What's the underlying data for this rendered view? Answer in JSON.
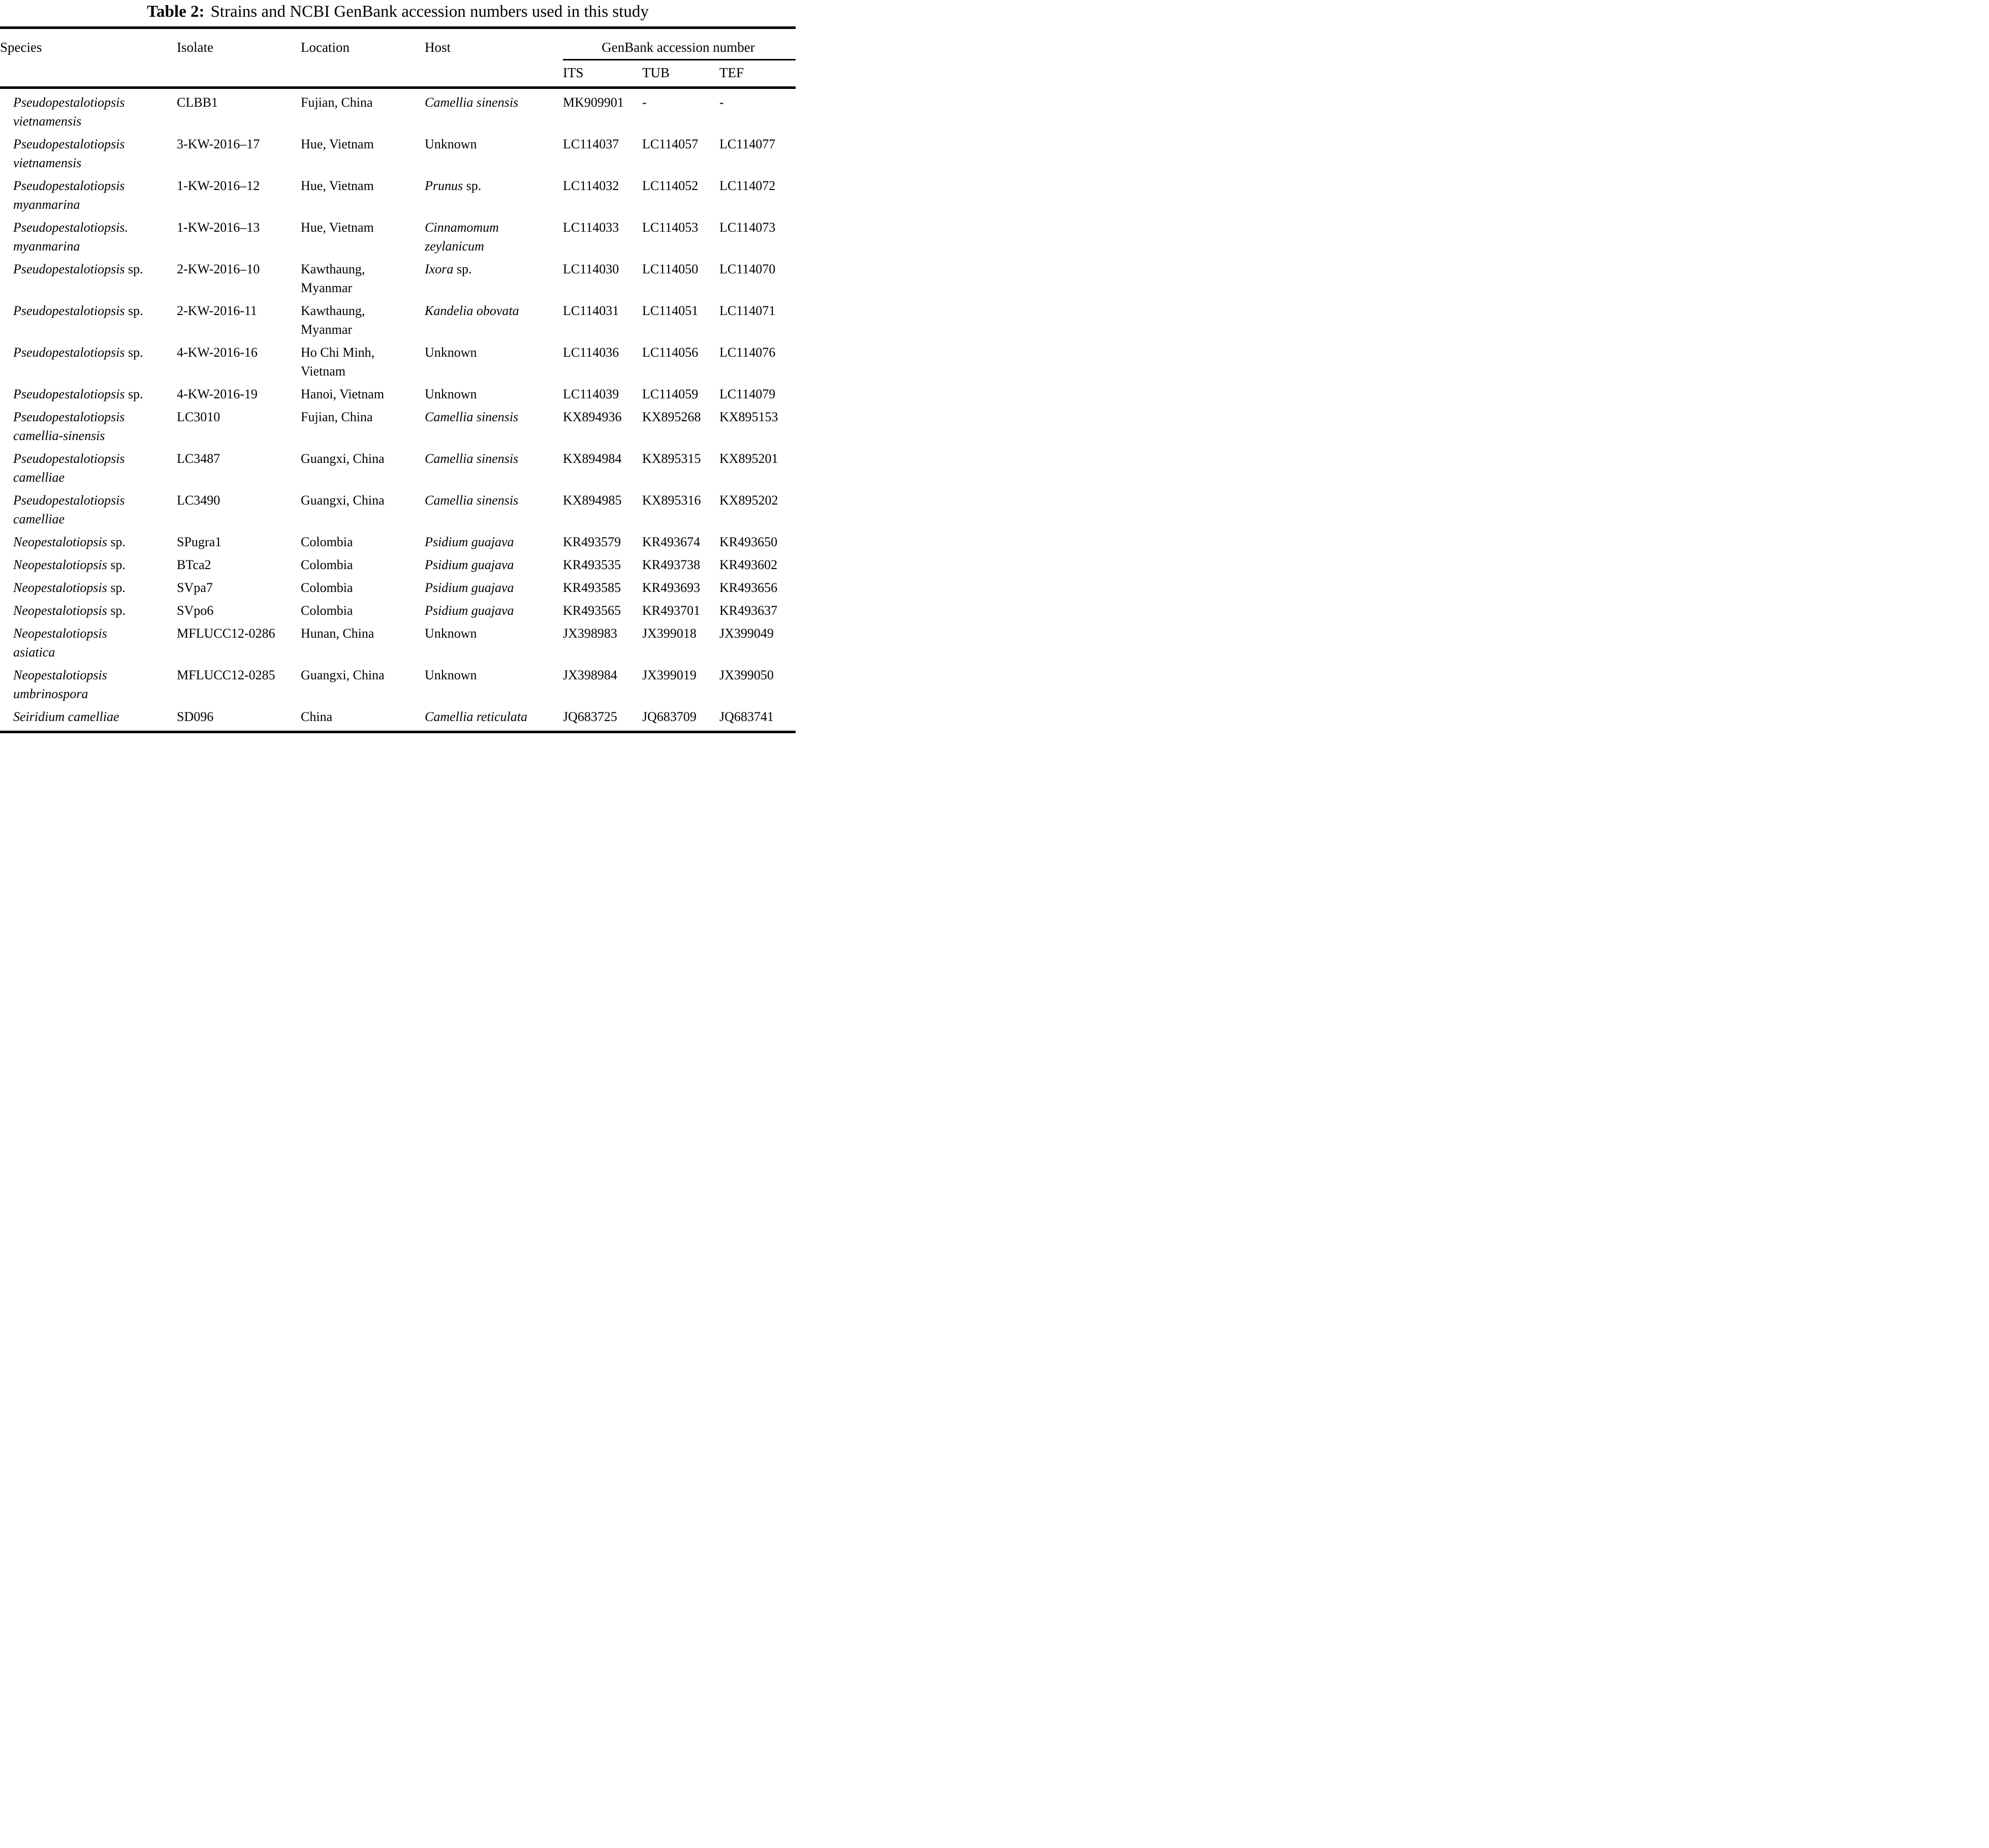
{
  "title": {
    "bold": "Table 2:",
    "rest": "Strains and NCBI GenBank accession numbers used in this study"
  },
  "table": {
    "columns": [
      "Species",
      "Isolate",
      "Location",
      "Host"
    ],
    "genbank_group": "GenBank accession number",
    "genbank_columns": [
      "ITS",
      "TUB",
      "TEF"
    ],
    "rows": [
      {
        "species_i": "Pseudopestalotiopsis\nvietnamensis",
        "species_r": "",
        "isolate": "CLBB1",
        "location": "Fujian, China",
        "host_i": "Camellia sinensis",
        "host_r": "",
        "its": "MK909901",
        "tub": "-",
        "tef": "-"
      },
      {
        "species_i": "Pseudopestalotiopsis\nvietnamensis",
        "species_r": "",
        "isolate": "3-KW-2016–17",
        "location": "Hue, Vietnam",
        "host_i": "",
        "host_r": "Unknown",
        "its": "LC114037",
        "tub": "LC114057",
        "tef": "LC114077"
      },
      {
        "species_i": "Pseudopestalotiopsis\nmyanmarina",
        "species_r": "",
        "isolate": "1-KW-2016–12",
        "location": "Hue, Vietnam",
        "host_i": "Prunus",
        "host_r": " sp.",
        "its": "LC114032",
        "tub": "LC114052",
        "tef": "LC114072"
      },
      {
        "species_i": "Pseudopestalotiopsis.\nmyanmarina",
        "species_r": "",
        "isolate": "1-KW-2016–13",
        "location": "Hue, Vietnam",
        "host_i": "Cinnamomum\nzeylanicum",
        "host_r": "",
        "its": "LC114033",
        "tub": "LC114053",
        "tef": "LC114073"
      },
      {
        "species_i": "Pseudopestalotiopsis",
        "species_r": " sp.",
        "isolate": "2-KW-2016–10",
        "location": "Kawthaung,\nMyanmar",
        "host_i": "Ixora",
        "host_r": " sp.",
        "its": "LC114030",
        "tub": "LC114050",
        "tef": "LC114070"
      },
      {
        "species_i": "Pseudopestalotiopsis",
        "species_r": " sp.",
        "isolate": "2-KW-2016-11",
        "location": "Kawthaung,\nMyanmar",
        "host_i": "Kandelia obovata",
        "host_r": "",
        "its": "LC114031",
        "tub": "LC114051",
        "tef": "LC114071"
      },
      {
        "species_i": "Pseudopestalotiopsis",
        "species_r": " sp.",
        "isolate": "4-KW-2016-16",
        "location": "Ho Chi Minh,\nVietnam",
        "host_i": "",
        "host_r": "Unknown",
        "its": "LC114036",
        "tub": "LC114056",
        "tef": "LC114076"
      },
      {
        "species_i": "Pseudopestalotiopsis",
        "species_r": " sp.",
        "isolate": "4-KW-2016-19",
        "location": "Hanoi, Vietnam",
        "host_i": "",
        "host_r": "Unknown",
        "its": "LC114039",
        "tub": "LC114059",
        "tef": "LC114079"
      },
      {
        "species_i": "Pseudopestalotiopsis\ncamellia-sinensis",
        "species_r": "",
        "isolate": "LC3010",
        "location": "Fujian, China",
        "host_i": "Camellia sinensis",
        "host_r": "",
        "its": "KX894936",
        "tub": "KX895268",
        "tef": "KX895153"
      },
      {
        "species_i": "Pseudopestalotiopsis\ncamelliae",
        "species_r": "",
        "isolate": "LC3487",
        "location": "Guangxi, China",
        "host_i": "Camellia sinensis",
        "host_r": "",
        "its": "KX894984",
        "tub": "KX895315",
        "tef": "KX895201"
      },
      {
        "species_i": "Pseudopestalotiopsis\ncamelliae",
        "species_r": "",
        "isolate": "LC3490",
        "location": "Guangxi, China",
        "host_i": "Camellia sinensis",
        "host_r": "",
        "its": "KX894985",
        "tub": "KX895316",
        "tef": "KX895202"
      },
      {
        "species_i": "Neopestalotiopsis",
        "species_r": " sp.",
        "isolate": "SPugra1",
        "location": "Colombia",
        "host_i": "Psidium guajava",
        "host_r": "",
        "its": "KR493579",
        "tub": "KR493674",
        "tef": "KR493650"
      },
      {
        "species_i": "Neopestalotiopsis",
        "species_r": " sp.",
        "isolate": "BTca2",
        "location": "Colombia",
        "host_i": "Psidium guajava",
        "host_r": "",
        "its": "KR493535",
        "tub": "KR493738",
        "tef": "KR493602"
      },
      {
        "species_i": "Neopestalotiopsis",
        "species_r": " sp.",
        "isolate": "SVpa7",
        "location": "Colombia",
        "host_i": "Psidium guajava",
        "host_r": "",
        "its": "KR493585",
        "tub": "KR493693",
        "tef": "KR493656"
      },
      {
        "species_i": "Neopestalotiopsis",
        "species_r": " sp.",
        "isolate": "SVpo6",
        "location": "Colombia",
        "host_i": "Psidium guajava",
        "host_r": "",
        "its": "KR493565",
        "tub": "KR493701",
        "tef": "KR493637"
      },
      {
        "species_i": "Neopestalotiopsis\nasiatica",
        "species_r": "",
        "isolate": "MFLUCC12-0286",
        "location": "Hunan, China",
        "host_i": "",
        "host_r": "Unknown",
        "its": "JX398983",
        "tub": "JX399018",
        "tef": "JX399049"
      },
      {
        "species_i": "Neopestalotiopsis\numbrinospora",
        "species_r": "",
        "isolate": "MFLUCC12-0285",
        "location": "Guangxi, China",
        "host_i": "",
        "host_r": "Unknown",
        "its": "JX398984",
        "tub": "JX399019",
        "tef": "JX399050"
      },
      {
        "species_i": "Seiridium camelliae",
        "species_r": "",
        "isolate": "SD096",
        "location": "China",
        "host_i": "Camellia reticulata",
        "host_r": "",
        "its": "JQ683725",
        "tub": "JQ683709",
        "tef": "JQ683741"
      }
    ]
  }
}
